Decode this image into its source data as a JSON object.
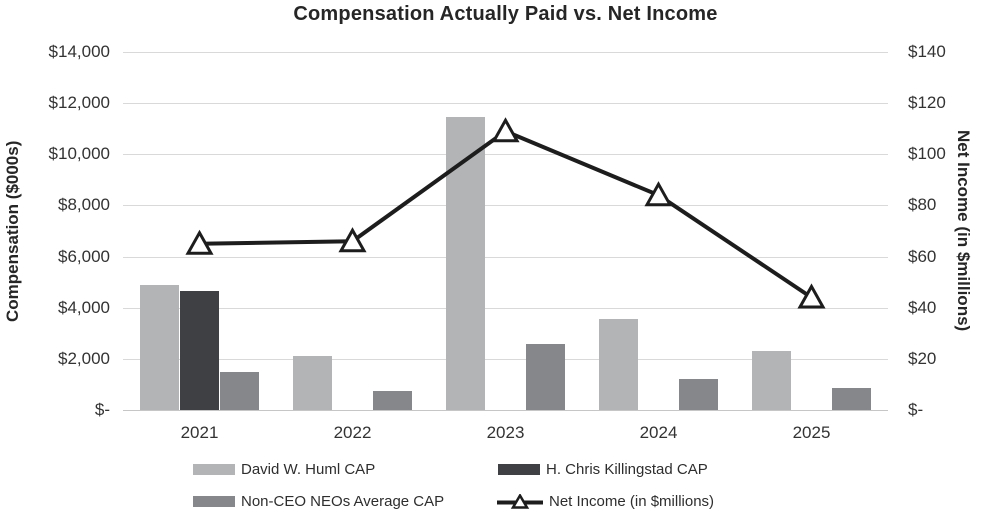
{
  "title": "Compensation Actually Paid vs. Net Income",
  "chart_data": {
    "type": "bar",
    "subtype": "grouped-bars-with-line-overlay",
    "title": "Compensation Actually Paid vs. Net Income",
    "categories": [
      "2021",
      "2022",
      "2023",
      "2024",
      "2025"
    ],
    "bar_series": [
      {
        "name": "David W. Huml CAP",
        "color": "#b2b4b6",
        "values": [
          4900,
          2100,
          11450,
          3550,
          2300
        ]
      },
      {
        "name": "H. Chris Killingstad CAP",
        "color": "#3f4044",
        "values": [
          4650,
          null,
          null,
          null,
          null
        ]
      },
      {
        "name": "Non-CEO NEOs Average CAP",
        "color": "#85878a",
        "values": [
          1500,
          750,
          2600,
          1200,
          850
        ]
      }
    ],
    "line_series": {
      "name": "Net Income (in $millions)",
      "color": "#1d1d1d",
      "marker": "hollow-triangle-up",
      "marker_fill": "#ffffff",
      "axis": "right",
      "values": [
        65,
        66,
        109,
        84,
        44
      ]
    },
    "left_axis": {
      "label": "Compensation ($000s)",
      "ticks": [
        "$14,000",
        "$12,000",
        "$10,000",
        "$8,000",
        "$6,000",
        "$4,000",
        "$2,000",
        "$-"
      ],
      "tick_values": [
        14000,
        12000,
        10000,
        8000,
        6000,
        4000,
        2000,
        0
      ],
      "min": 0,
      "max": 14000
    },
    "right_axis": {
      "label": "Net Income (in $millions)",
      "ticks": [
        "$140",
        "$120",
        "$100",
        "$80",
        "$60",
        "$40",
        "$20",
        "$-"
      ],
      "tick_values": [
        140,
        120,
        100,
        80,
        60,
        40,
        20,
        0
      ],
      "min": 0,
      "max": 140
    },
    "grid": "horizontal-only",
    "grid_color": "#d9d9d9",
    "legend_position": "bottom"
  },
  "legend": {
    "items": [
      {
        "label": "David W. Huml CAP",
        "swatch": "bar",
        "color": "#b2b4b6"
      },
      {
        "label": "H. Chris Killingstad CAP",
        "swatch": "bar",
        "color": "#3f4044"
      },
      {
        "label": "Non-CEO NEOs Average CAP",
        "swatch": "bar",
        "color": "#85878a"
      },
      {
        "label": "Net Income (in $millions)",
        "swatch": "line-triangle",
        "color": "#1d1d1d"
      }
    ]
  }
}
